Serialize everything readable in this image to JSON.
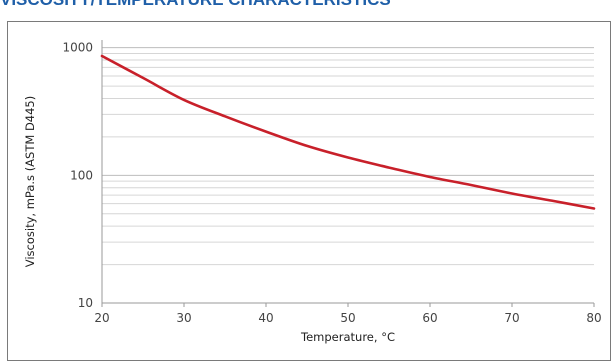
{
  "section_title": "VISCOSITY/TEMPERATURE CHARACTERISTICS",
  "chart_data": {
    "type": "line",
    "xlabel": "Temperature, °C",
    "ylabel": "Viscosity, mPa.s (ASTM D445)",
    "xlim": [
      20,
      80
    ],
    "ylim": [
      10,
      1000
    ],
    "y_scale": "log",
    "x_ticks": [
      20,
      30,
      40,
      50,
      60,
      70,
      80
    ],
    "y_ticks": [
      10,
      100,
      1000
    ],
    "grid": true,
    "series": [
      {
        "color": "#c8202a",
        "x": [
          20,
          25,
          30,
          35,
          40,
          45,
          50,
          55,
          60,
          65,
          70,
          75,
          80
        ],
        "y": [
          860,
          580,
          390,
          290,
          220,
          170,
          138,
          115,
          97,
          84,
          72,
          63,
          55
        ]
      }
    ]
  }
}
